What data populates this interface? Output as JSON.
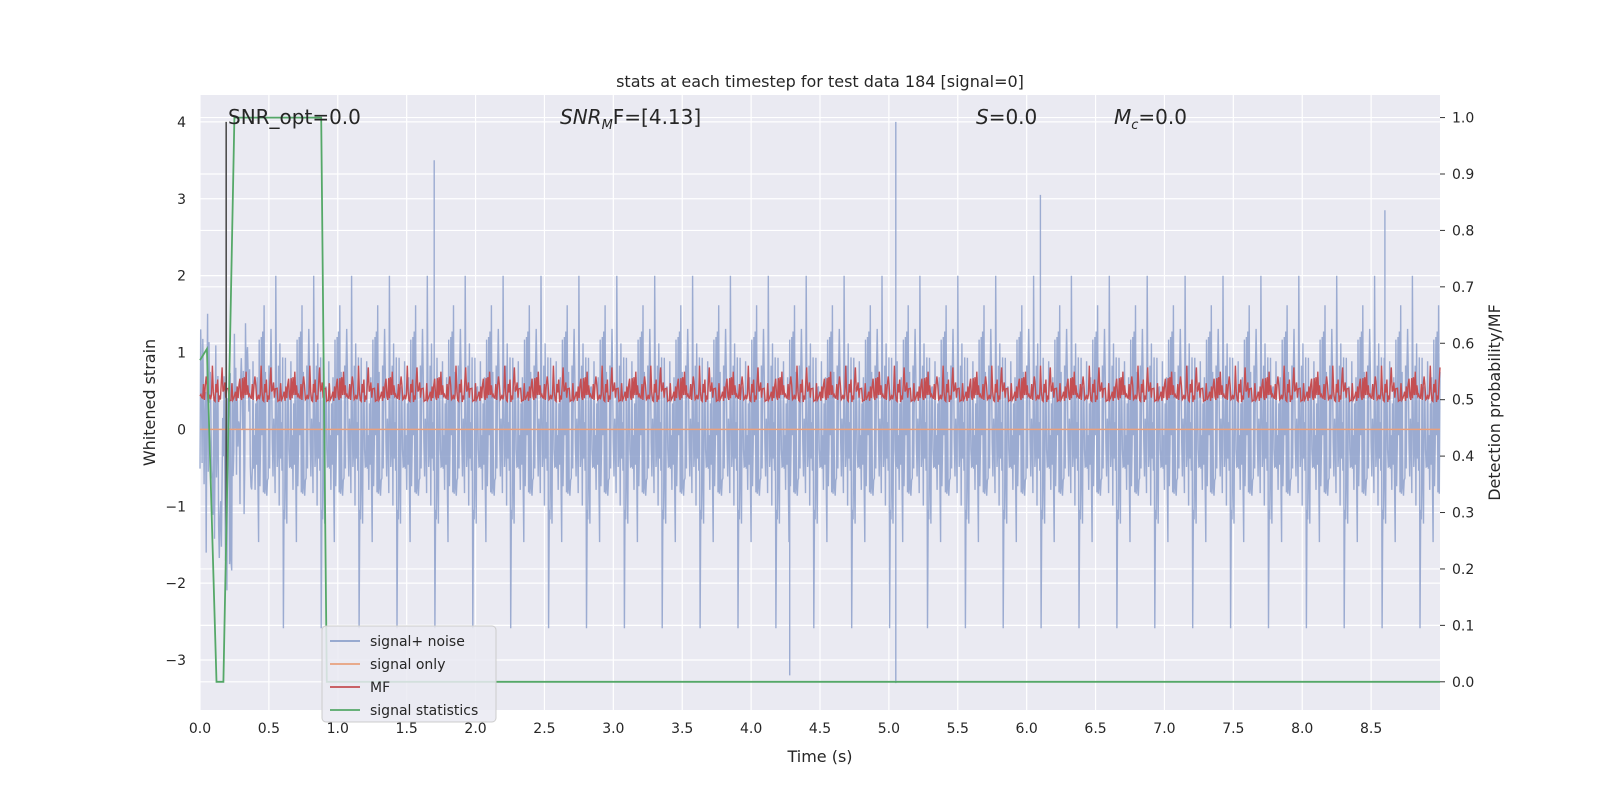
{
  "chart_data": {
    "type": "line",
    "title": "stats at each timestep for test data 184 [signal=0]",
    "xlabel": "Time (s)",
    "ylabel": "Whitened strain",
    "ylabel_right": "Detection probability/MF",
    "xlim": [
      0.0,
      9.0
    ],
    "ylim": [
      -3.65,
      4.35
    ],
    "ylim_right": [
      -0.05,
      1.04
    ],
    "x_ticks": [
      "0.0",
      "0.5",
      "1.0",
      "1.5",
      "2.0",
      "2.5",
      "3.0",
      "3.5",
      "4.0",
      "4.5",
      "5.0",
      "5.5",
      "6.0",
      "6.5",
      "7.0",
      "7.5",
      "8.0",
      "8.5"
    ],
    "y_ticks": [
      "4",
      "3",
      "2",
      "1",
      "0",
      "−1",
      "−2",
      "−3"
    ],
    "y_ticks_right": [
      "1.0",
      "0.9",
      "0.8",
      "0.7",
      "0.6",
      "0.5",
      "0.4",
      "0.3",
      "0.2",
      "0.1",
      "0.0"
    ],
    "grid": true,
    "legend_position": "lower-left",
    "annotations": {
      "snr_opt": "SNR_opt=0.0",
      "snr_mf_base": "SNR",
      "snr_mf_sub": "M",
      "snr_mf_rest": "F=[4.13]",
      "s_label_it": "S",
      "s_label_rest": "=0.0",
      "mc_base": "M",
      "mc_sub": "c",
      "mc_rest": "=0.0"
    },
    "series": [
      {
        "name": "signal+ noise",
        "color": "#8da0cb",
        "axis": "left",
        "description_range": [
          -3.3,
          4.0
        ],
        "notable_peaks": [
          [
            1.7,
            3.5
          ],
          [
            5.05,
            4.0
          ],
          [
            5.05,
            -3.3
          ],
          [
            4.28,
            -3.2
          ],
          [
            8.6,
            2.85
          ],
          [
            6.1,
            3.05
          ]
        ]
      },
      {
        "name": "signal only",
        "color": "#e8a07e",
        "axis": "left",
        "values_constant": 0.0
      },
      {
        "name": "MF",
        "color": "#c44e52",
        "axis": "right",
        "baseline": 0.5,
        "range": [
          0.45,
          0.6
        ]
      },
      {
        "name": "signal statistics",
        "color": "#55a868",
        "axis": "right",
        "x": [
          0.0,
          0.05,
          0.12,
          0.17,
          0.25,
          0.88,
          0.92,
          9.0
        ],
        "y": [
          0.57,
          0.59,
          0.0,
          0.0,
          1.0,
          1.0,
          0.0,
          0.0
        ]
      }
    ],
    "vertical_marker_x": 0.19
  }
}
